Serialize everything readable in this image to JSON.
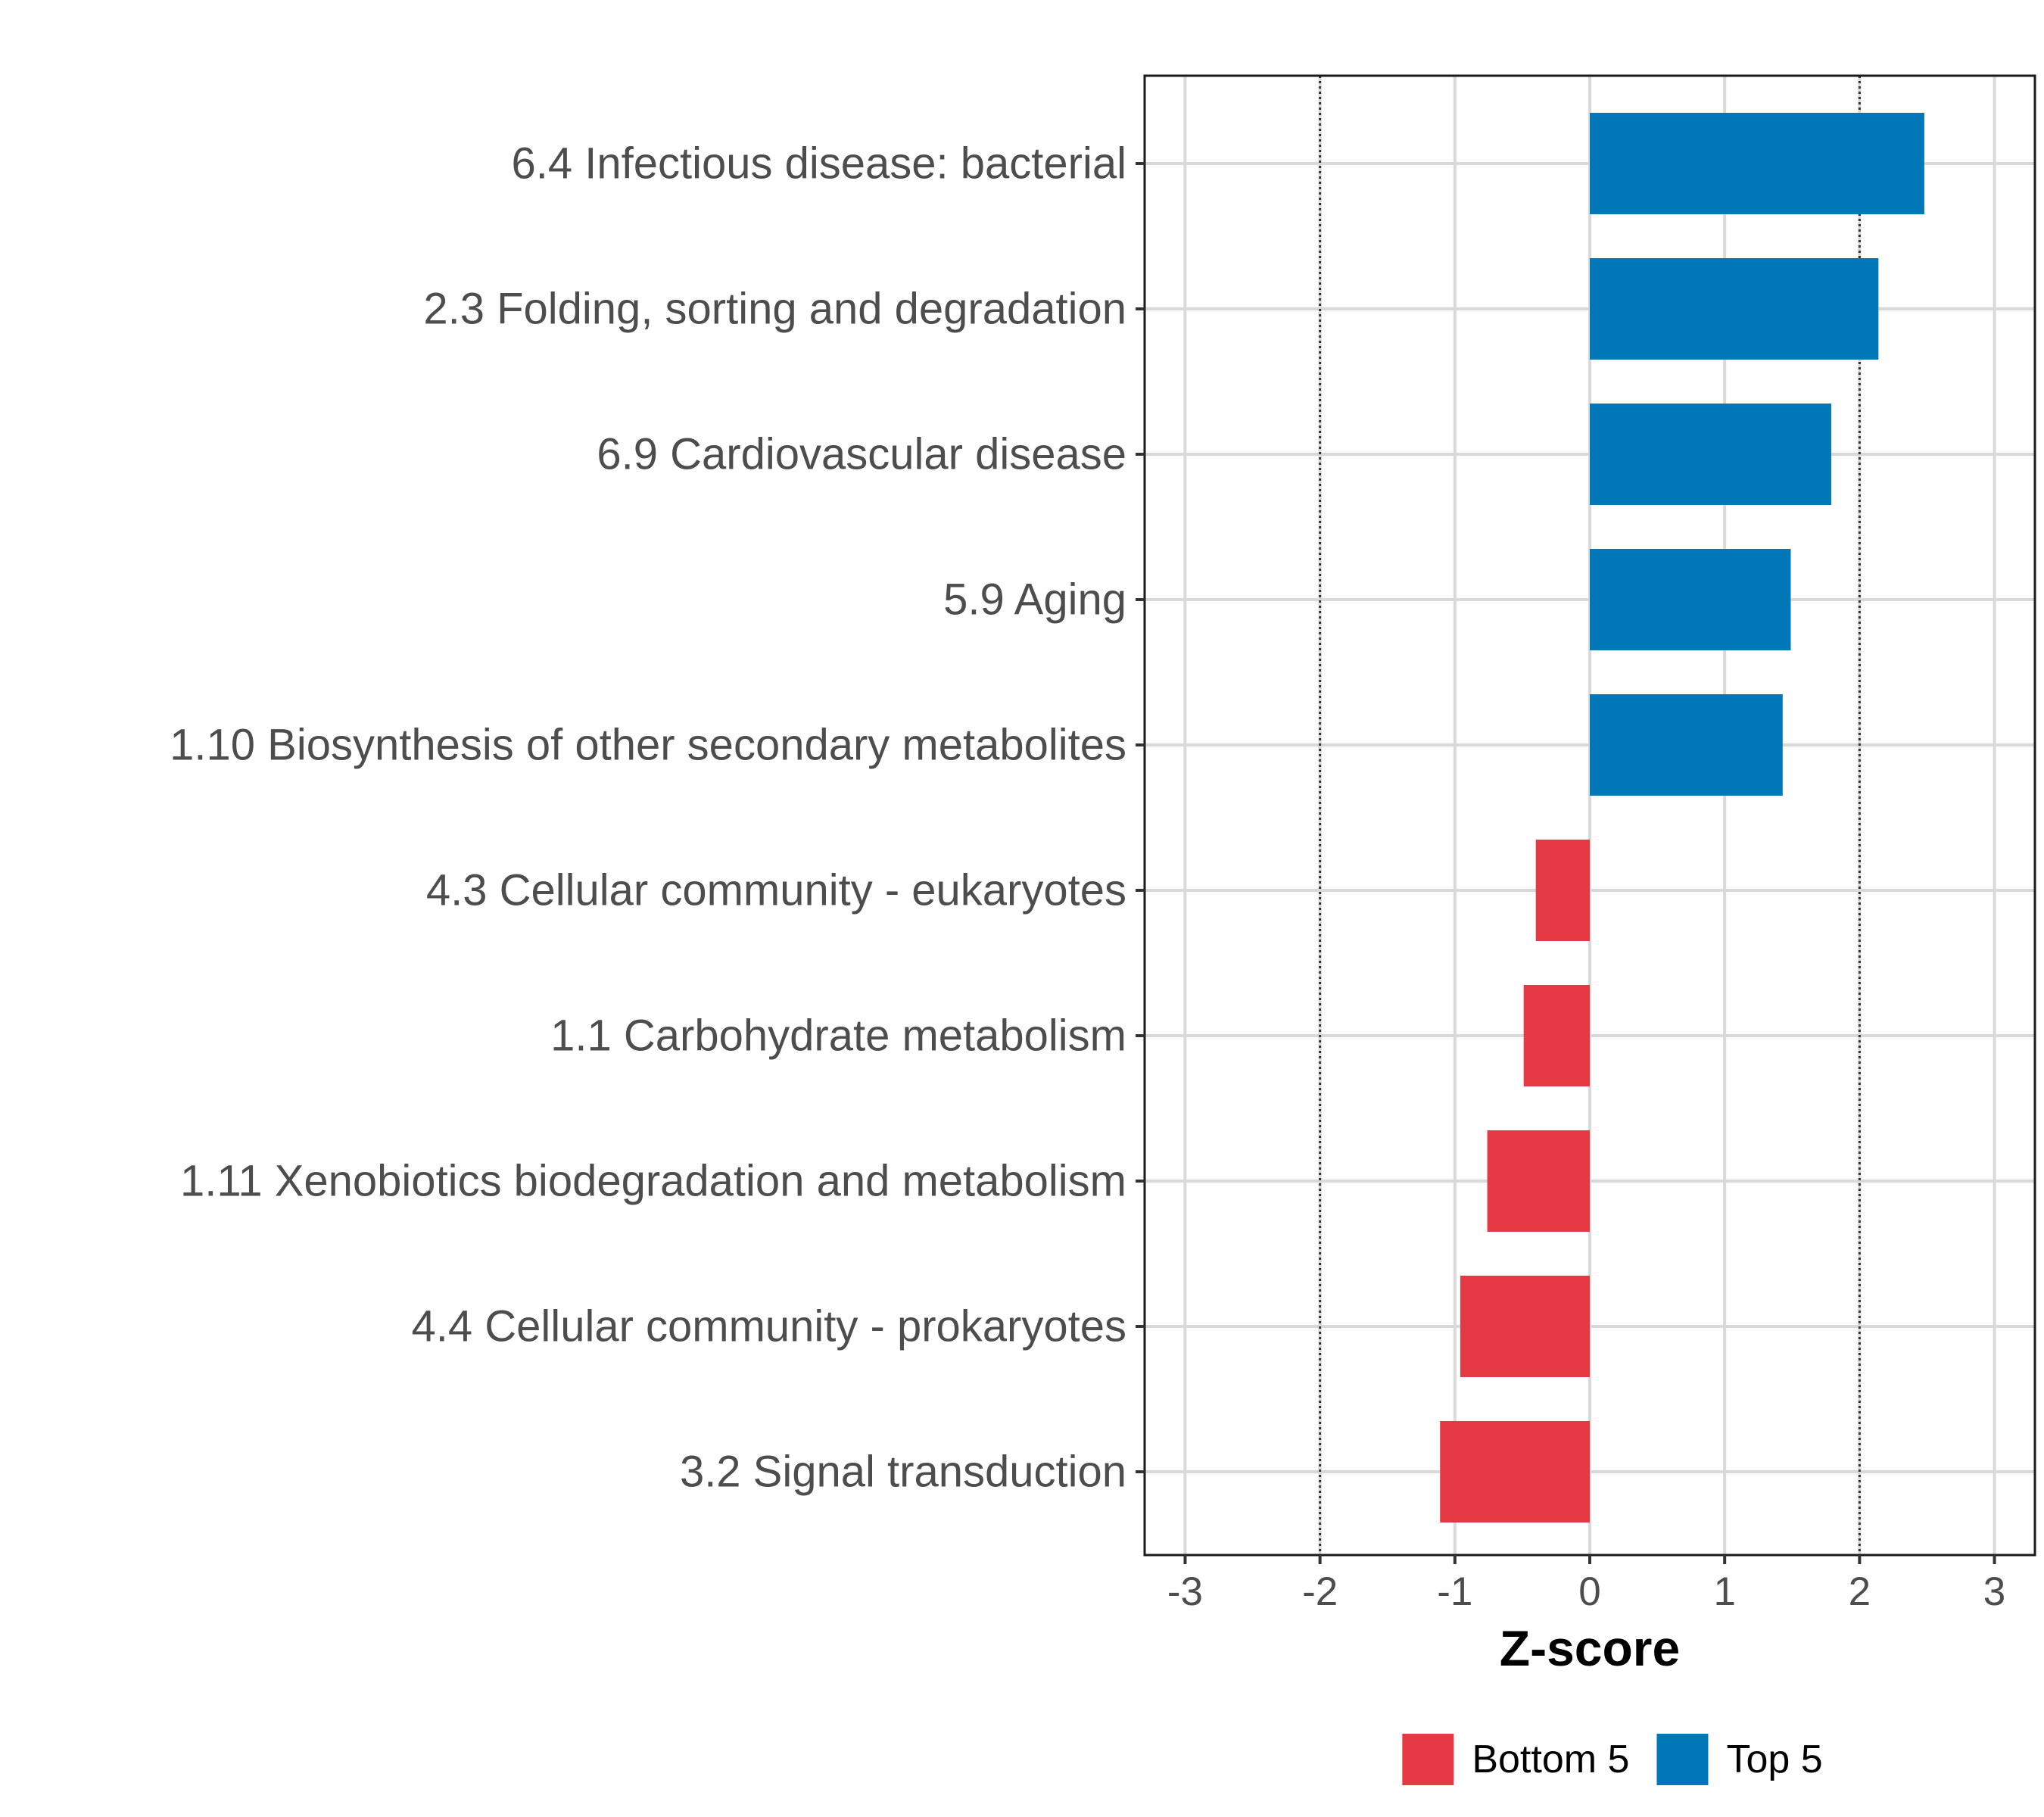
{
  "chart_data": {
    "type": "bar",
    "orientation": "horizontal",
    "title": "",
    "xlabel": "Z-score",
    "ylabel": "",
    "xlim": [
      -3,
      3
    ],
    "x_ticks": [
      -3,
      -2,
      -1,
      0,
      1,
      2,
      3
    ],
    "x_tick_labels": [
      "-3",
      "-2",
      "-1",
      "0",
      "1",
      "2",
      "3"
    ],
    "grid": true,
    "reference_lines": [
      -2,
      2
    ],
    "categories": [
      "6.4 Infectious disease: bacterial",
      "2.3 Folding, sorting and degradation",
      "6.9 Cardiovascular disease",
      "5.9 Aging",
      "1.10 Biosynthesis of other secondary metabolites",
      "4.3 Cellular community - eukaryotes",
      "1.1 Carbohydrate metabolism",
      "1.11 Xenobiotics biodegradation and metabolism",
      "4.4 Cellular community - prokaryotes",
      "3.2 Signal transduction"
    ],
    "values": [
      2.48,
      2.14,
      1.79,
      1.49,
      1.43,
      -0.4,
      -0.49,
      -0.76,
      -0.96,
      -1.11
    ],
    "groups": [
      "Top 5",
      "Top 5",
      "Top 5",
      "Top 5",
      "Top 5",
      "Bottom 5",
      "Bottom 5",
      "Bottom 5",
      "Bottom 5",
      "Bottom 5"
    ],
    "legend": {
      "position": "bottom",
      "entries": [
        {
          "label": "Bottom 5",
          "color": "#e63946"
        },
        {
          "label": "Top 5",
          "color": "#0077b6"
        }
      ]
    }
  }
}
